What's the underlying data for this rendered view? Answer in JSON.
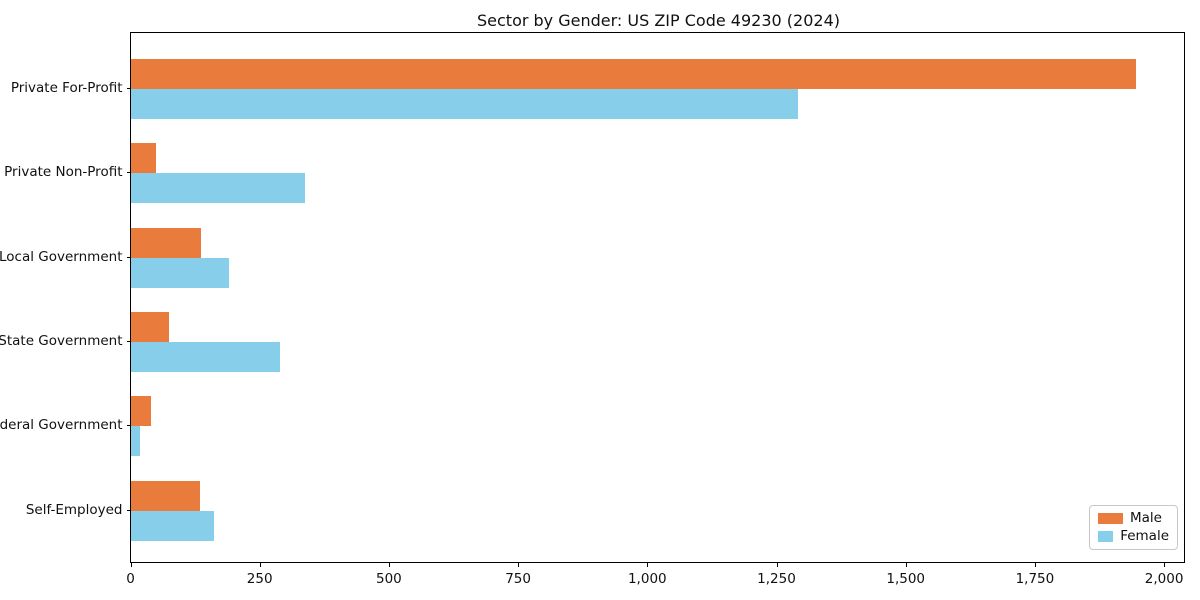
{
  "chart_data": {
    "type": "bar",
    "orientation": "horizontal",
    "title": "Sector by Gender: US ZIP Code 49230 (2024)",
    "categories": [
      "Private For-Profit",
      "Private Non-Profit",
      "Local Government",
      "State Government",
      "Federal Government",
      "Self-Employed"
    ],
    "series": [
      {
        "name": "Male",
        "color": "#E97C3C",
        "values": [
          1945,
          49,
          136,
          73,
          39,
          134
        ]
      },
      {
        "name": "Female",
        "color": "#87CEEB",
        "values": [
          1290,
          337,
          190,
          289,
          17,
          161
        ]
      }
    ],
    "xlim": [
      0,
      2040
    ],
    "xticks": [
      0,
      250,
      500,
      750,
      1000,
      1250,
      1500,
      1750,
      2000
    ],
    "xtick_labels": [
      "0",
      "250",
      "500",
      "750",
      "1,000",
      "1,250",
      "1,500",
      "1,750",
      "2,000"
    ],
    "ylabel": "",
    "xlabel": "",
    "grid": false,
    "legend": {
      "position": "lower right",
      "entries": [
        "Male",
        "Female"
      ]
    }
  }
}
